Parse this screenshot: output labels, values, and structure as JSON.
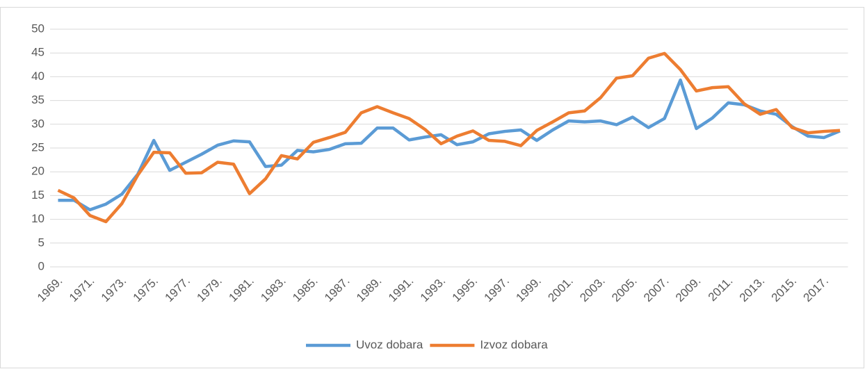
{
  "chart_data": {
    "type": "line",
    "categories": [
      "1969.",
      null,
      "1971.",
      null,
      "1973.",
      null,
      "1975.",
      null,
      "1977.",
      null,
      "1979.",
      null,
      "1981.",
      null,
      "1983.",
      null,
      "1985.",
      null,
      "1987.",
      null,
      "1989.",
      null,
      "1991.",
      null,
      "1993.",
      null,
      "1995.",
      null,
      "1997.",
      null,
      "1999.",
      null,
      "2001.",
      null,
      "2003.",
      null,
      "2005.",
      null,
      "2007.",
      null,
      "2009.",
      null,
      "2011.",
      null,
      "2013.",
      null,
      "2015.",
      null,
      "2017.",
      null
    ],
    "series": [
      {
        "name": "Uvoz dobara",
        "color": "#5b9bd5",
        "values": [
          14.0,
          14.0,
          12.0,
          13.2,
          15.3,
          19.5,
          26.6,
          20.3,
          22.0,
          23.7,
          25.6,
          26.5,
          26.3,
          21.1,
          21.4,
          24.5,
          24.2,
          24.7,
          25.9,
          26.0,
          29.2,
          29.2,
          26.7,
          27.3,
          27.8,
          25.7,
          26.3,
          28.0,
          28.5,
          28.8,
          26.6,
          28.8,
          30.7,
          30.5,
          30.7,
          29.9,
          31.5,
          29.3,
          31.2,
          39.3,
          29.1,
          31.3,
          34.5,
          34.1,
          32.8,
          32.1,
          29.5,
          27.5,
          27.2,
          28.6
        ]
      },
      {
        "name": "Izvoz dobara",
        "color": "#ed7d31",
        "values": [
          16.1,
          14.5,
          10.8,
          9.5,
          13.3,
          19.3,
          24.1,
          24.0,
          19.7,
          19.8,
          22.0,
          21.6,
          15.4,
          18.5,
          23.4,
          22.7,
          26.2,
          27.2,
          28.3,
          32.4,
          33.7,
          32.4,
          31.2,
          28.9,
          25.9,
          27.5,
          28.6,
          26.6,
          26.4,
          25.5,
          28.7,
          30.5,
          32.4,
          32.8,
          35.6,
          39.7,
          40.2,
          43.9,
          44.9,
          41.5,
          37.0,
          37.7,
          37.9,
          34.3,
          32.1,
          33.1,
          29.3,
          28.2,
          28.5,
          28.7
        ]
      }
    ],
    "ylim": [
      0,
      50
    ],
    "yticks": [
      0,
      5,
      10,
      15,
      20,
      25,
      30,
      35,
      40,
      45,
      50
    ],
    "grid": true,
    "legend": "bottom"
  }
}
